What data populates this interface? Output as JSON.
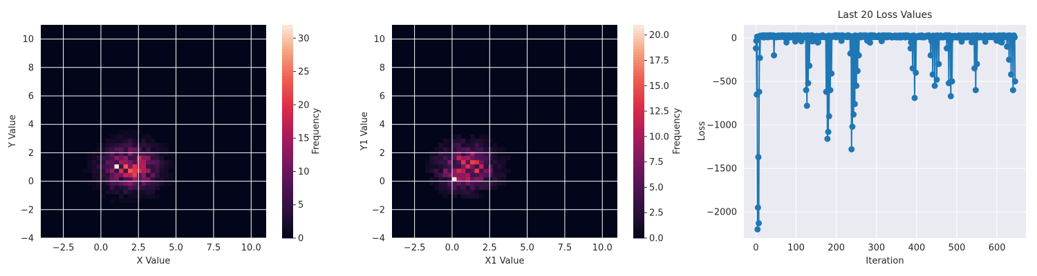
{
  "chart_data": [
    {
      "type": "heatmap",
      "xlabel": "X Value",
      "ylabel": "Y Value",
      "colorbar_label": "Frequency",
      "xlim": [
        -4,
        11
      ],
      "ylim": [
        -4,
        11
      ],
      "xticks": [
        -2.5,
        0.0,
        2.5,
        5.0,
        7.5,
        10.0
      ],
      "xtick_labels": [
        "−2.5",
        "0.0",
        "2.5",
        "5.0",
        "7.5",
        "10.0"
      ],
      "yticks": [
        -4,
        -2,
        0,
        2,
        4,
        6,
        8,
        10
      ],
      "ytick_labels": [
        "−4",
        "−2",
        "0",
        "2",
        "4",
        "6",
        "8",
        "10"
      ],
      "colorbar_range": [
        0,
        32
      ],
      "colorbar_ticks": [
        0,
        5,
        10,
        15,
        20,
        25,
        30
      ],
      "colorbar_tick_labels": [
        "0",
        "5",
        "10",
        "15",
        "20",
        "25",
        "30"
      ],
      "grid": true,
      "distribution": {
        "center": [
          2.0,
          1.0
        ],
        "spread": [
          1.2,
          1.0
        ],
        "peak": 32,
        "peak_at": [
          1.0,
          1.0
        ]
      }
    },
    {
      "type": "heatmap",
      "xlabel": "X1 Value",
      "ylabel": "Y1 Value",
      "colorbar_label": "Frequency",
      "xlim": [
        -4,
        11
      ],
      "ylim": [
        -4,
        11
      ],
      "xticks": [
        -2.5,
        0.0,
        2.5,
        5.0,
        7.5,
        10.0
      ],
      "xtick_labels": [
        "−2.5",
        "0.0",
        "2.5",
        "5.0",
        "7.5",
        "10.0"
      ],
      "yticks": [
        -4,
        -2,
        0,
        2,
        4,
        6,
        8,
        10
      ],
      "ytick_labels": [
        "−4",
        "−2",
        "0",
        "2",
        "4",
        "6",
        "8",
        "10"
      ],
      "colorbar_range": [
        0,
        21
      ],
      "colorbar_ticks": [
        0.0,
        2.5,
        5.0,
        7.5,
        10.0,
        12.5,
        15.0,
        17.5,
        20.0
      ],
      "colorbar_tick_labels": [
        "0.0",
        "2.5",
        "5.0",
        "7.5",
        "10.0",
        "12.5",
        "15.0",
        "17.5",
        "20.0"
      ],
      "grid": true,
      "distribution": {
        "center": [
          1.0,
          1.0
        ],
        "spread": [
          1.2,
          1.0
        ],
        "peak": 21,
        "peak_at": [
          0.0,
          0.0
        ]
      }
    },
    {
      "type": "line",
      "title": "Last 20 Loss Values",
      "xlabel": "Iteration",
      "ylabel": "Loss",
      "xlim": [
        -30,
        672
      ],
      "ylim": [
        -2300,
        150
      ],
      "xticks": [
        0,
        100,
        200,
        300,
        400,
        500,
        600
      ],
      "xtick_labels": [
        "0",
        "100",
        "200",
        "300",
        "400",
        "500",
        "600"
      ],
      "yticks": [
        0,
        -500,
        -1000,
        -1500,
        -2000
      ],
      "ytick_labels": [
        "0",
        "−500",
        "−1000",
        "−1500",
        "−2000"
      ],
      "grid": true,
      "color": "#1f77b4",
      "x_range": [
        0,
        645
      ],
      "segments": [
        {
          "start": 0,
          "end": 10,
          "dips": [
            [
              0,
              -120
            ],
            [
              2,
              -650
            ],
            [
              4,
              -2200
            ],
            [
              5,
              -1950
            ],
            [
              6,
              -1370
            ],
            [
              7,
              -2130
            ],
            [
              8,
              -620
            ],
            [
              10,
              -230
            ]
          ]
        },
        {
          "start": 10,
          "end": 45,
          "baseline": 20,
          "dips": [
            [
              45,
              -200
            ]
          ]
        },
        {
          "start": 120,
          "end": 140,
          "dips": [
            [
              125,
              -600
            ],
            [
              127,
              -780
            ],
            [
              130,
              -520
            ],
            [
              133,
              -320
            ]
          ]
        },
        {
          "start": 170,
          "end": 190,
          "dips": [
            [
              175,
              -620
            ],
            [
              178,
              -1160
            ],
            [
              180,
              -1080
            ],
            [
              182,
              -900
            ],
            [
              185,
              -600
            ],
            [
              188,
              -410
            ]
          ]
        },
        {
          "start": 233,
          "end": 260,
          "dips": [
            [
              235,
              -180
            ],
            [
              238,
              -1280
            ],
            [
              240,
              -1020
            ],
            [
              243,
              -880
            ],
            [
              246,
              -760
            ],
            [
              250,
              -550
            ],
            [
              253,
              -380
            ],
            [
              256,
              -200
            ]
          ]
        },
        {
          "start": 380,
          "end": 400,
          "dips": [
            [
              385,
              -120
            ],
            [
              390,
              -350
            ],
            [
              395,
              -690
            ],
            [
              398,
              -400
            ]
          ]
        },
        {
          "start": 430,
          "end": 460,
          "dips": [
            [
              435,
              -200
            ],
            [
              440,
              -420
            ],
            [
              445,
              -550
            ],
            [
              450,
              -480
            ],
            [
              455,
              -300
            ]
          ]
        },
        {
          "start": 470,
          "end": 490,
          "dips": [
            [
              475,
              -120
            ],
            [
              480,
              -520
            ],
            [
              485,
              -670
            ],
            [
              488,
              -500
            ]
          ]
        },
        {
          "start": 540,
          "end": 555,
          "dips": [
            [
              544,
              -350
            ],
            [
              547,
              -600
            ],
            [
              550,
              -300
            ]
          ]
        },
        {
          "start": 620,
          "end": 645,
          "dips": [
            [
              625,
              -100
            ],
            [
              630,
              -250
            ],
            [
              635,
              -420
            ],
            [
              640,
              -600
            ],
            [
              645,
              -500
            ]
          ]
        }
      ]
    }
  ]
}
